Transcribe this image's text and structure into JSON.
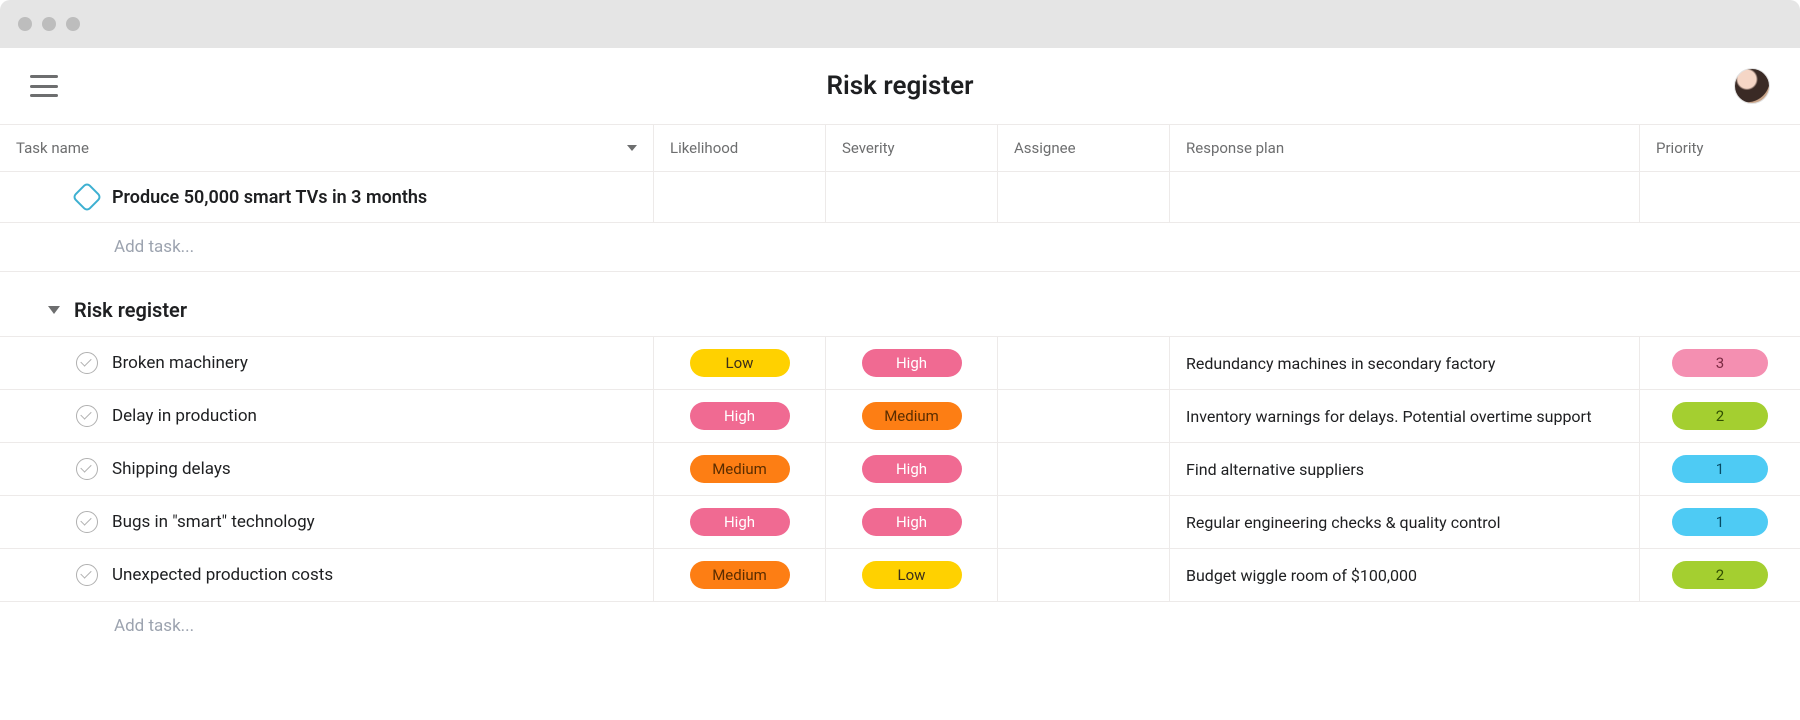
{
  "page": {
    "title": "Risk register"
  },
  "columns": {
    "task_name": "Task name",
    "likelihood": "Likelihood",
    "severity": "Severity",
    "assignee": "Assignee",
    "response_plan": "Response plan",
    "priority": "Priority"
  },
  "goal": {
    "label": "Produce 50,000 smart TVs in 3 months"
  },
  "add_task_label": "Add task...",
  "section": {
    "title": "Risk register"
  },
  "colors": {
    "pill_low_yellow": "#ffd100",
    "pill_high_pink": "#f06a92",
    "pill_medium_orange": "#fd7e14",
    "pill_priority_pink": "#f48fb1",
    "pill_priority_green": "#a4cf30",
    "pill_priority_blue": "#4ecbf4",
    "pill_text_dark": "#3b2e1a",
    "pill_text_white": "#ffffff"
  },
  "risks": [
    {
      "name": "Broken machinery",
      "likelihood": {
        "label": "Low",
        "bg": "#ffd100",
        "fg": "#3b2e1a"
      },
      "severity": {
        "label": "High",
        "bg": "#f06a92",
        "fg": "#ffffff"
      },
      "response": "Redundancy machines in secondary factory",
      "priority": {
        "label": "3",
        "bg": "#f48fb1",
        "fg": "#7a2a42"
      }
    },
    {
      "name": "Delay in production",
      "likelihood": {
        "label": "High",
        "bg": "#f06a92",
        "fg": "#ffffff"
      },
      "severity": {
        "label": "Medium",
        "bg": "#fd7e14",
        "fg": "#5a2d00"
      },
      "response": "Inventory warnings for delays. Potential overtime support",
      "priority": {
        "label": "2",
        "bg": "#a4cf30",
        "fg": "#2f4d00"
      }
    },
    {
      "name": "Shipping delays",
      "likelihood": {
        "label": "Medium",
        "bg": "#fd7e14",
        "fg": "#5a2d00"
      },
      "severity": {
        "label": "High",
        "bg": "#f06a92",
        "fg": "#ffffff"
      },
      "response": "Find alternative suppliers",
      "priority": {
        "label": "1",
        "bg": "#4ecbf4",
        "fg": "#064a63"
      }
    },
    {
      "name": "Bugs in \"smart\" technology",
      "likelihood": {
        "label": "High",
        "bg": "#f06a92",
        "fg": "#ffffff"
      },
      "severity": {
        "label": "High",
        "bg": "#f06a92",
        "fg": "#ffffff"
      },
      "response": "Regular engineering checks & quality control",
      "priority": {
        "label": "1",
        "bg": "#4ecbf4",
        "fg": "#064a63"
      }
    },
    {
      "name": "Unexpected production costs",
      "likelihood": {
        "label": "Medium",
        "bg": "#fd7e14",
        "fg": "#5a2d00"
      },
      "severity": {
        "label": "Low",
        "bg": "#ffd100",
        "fg": "#3b2e1a"
      },
      "response": "Budget wiggle room of $100,000",
      "priority": {
        "label": "2",
        "bg": "#a4cf30",
        "fg": "#2f4d00"
      }
    }
  ]
}
